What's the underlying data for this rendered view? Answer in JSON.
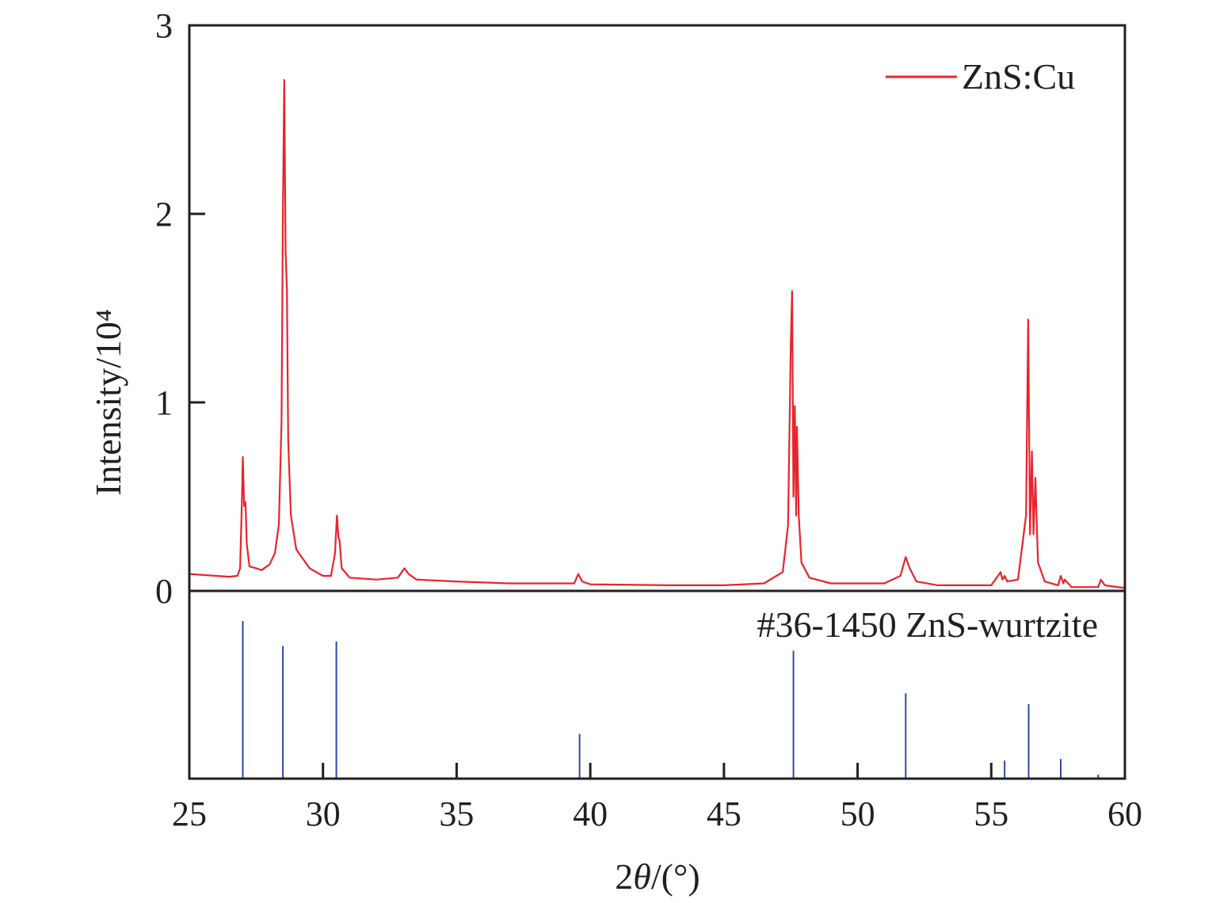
{
  "chart_data": [
    {
      "type": "line",
      "xlabel_prefix": "2",
      "xlabel_symbol": "θ",
      "xlabel_suffix": "/(°)",
      "ylabel": "Intensity/10⁴",
      "xlim": [
        25,
        60
      ],
      "ylim": [
        0,
        3
      ],
      "xticks": [
        "25",
        "30",
        "35",
        "40",
        "45",
        "50",
        "55",
        "60"
      ],
      "yticks": [
        "0",
        "1",
        "2",
        "3"
      ],
      "grid": false,
      "legend_position": "top-right",
      "series": [
        {
          "name": "ZnS:Cu",
          "color": "#e8242b",
          "x": [
            25.0,
            25.5,
            26.0,
            26.5,
            26.8,
            26.9,
            26.97,
            27.0,
            27.05,
            27.1,
            27.15,
            27.25,
            27.5,
            27.7,
            28.0,
            28.2,
            28.35,
            28.45,
            28.5,
            28.55,
            28.6,
            28.65,
            28.7,
            28.8,
            29.0,
            29.5,
            30.0,
            30.3,
            30.45,
            30.52,
            30.58,
            30.62,
            30.7,
            31.0,
            32.0,
            32.8,
            33.05,
            33.2,
            33.5,
            35.0,
            37.0,
            39.4,
            39.55,
            39.7,
            40.0,
            43.0,
            45.0,
            46.5,
            47.2,
            47.4,
            47.5,
            47.55,
            47.6,
            47.65,
            47.7,
            47.73,
            47.8,
            47.9,
            48.2,
            49.0,
            51.0,
            51.6,
            51.8,
            51.95,
            52.2,
            53.0,
            55.0,
            55.35,
            55.42,
            55.5,
            55.6,
            56.0,
            56.3,
            56.38,
            56.45,
            56.52,
            56.58,
            56.65,
            56.75,
            57.0,
            57.5,
            57.6,
            57.7,
            57.75,
            58.0,
            59.0,
            59.1,
            59.25,
            60.0
          ],
          "y": [
            0.09,
            0.085,
            0.08,
            0.075,
            0.08,
            0.12,
            0.5,
            0.71,
            0.45,
            0.47,
            0.25,
            0.13,
            0.12,
            0.11,
            0.14,
            0.2,
            0.35,
            0.9,
            2.0,
            2.71,
            1.8,
            1.6,
            0.8,
            0.4,
            0.22,
            0.12,
            0.08,
            0.08,
            0.2,
            0.4,
            0.28,
            0.27,
            0.12,
            0.07,
            0.06,
            0.07,
            0.12,
            0.09,
            0.06,
            0.05,
            0.04,
            0.04,
            0.09,
            0.05,
            0.035,
            0.03,
            0.03,
            0.04,
            0.1,
            0.35,
            1.3,
            1.59,
            0.5,
            0.98,
            0.4,
            0.87,
            0.4,
            0.15,
            0.07,
            0.04,
            0.04,
            0.08,
            0.18,
            0.12,
            0.05,
            0.03,
            0.03,
            0.1,
            0.06,
            0.08,
            0.05,
            0.06,
            0.4,
            1.44,
            0.3,
            0.74,
            0.3,
            0.6,
            0.15,
            0.05,
            0.03,
            0.08,
            0.04,
            0.06,
            0.02,
            0.02,
            0.06,
            0.03,
            0.015
          ]
        }
      ]
    },
    {
      "type": "bar",
      "subtype": "stick-pattern",
      "label": "#36-1450 ZnS-wurtzite",
      "color": "#2e4a9e",
      "x": [
        27.0,
        28.5,
        30.5,
        39.6,
        47.6,
        51.8,
        55.5,
        56.4,
        57.6,
        59.0
      ],
      "relative_intensity": [
        100,
        84,
        87,
        28,
        81,
        54,
        11,
        47,
        12,
        2
      ]
    }
  ]
}
